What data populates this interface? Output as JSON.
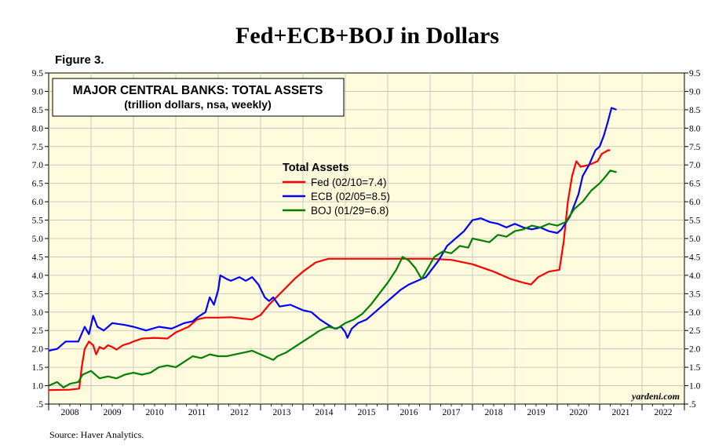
{
  "chart_data": {
    "type": "line",
    "title": "Fed+ECB+BOJ in Dollars",
    "figure_label": "Figure 3.",
    "box_title": "MAJOR CENTRAL BANKS: TOTAL ASSETS",
    "box_subtitle": "(trillion dollars, nsa, weekly)",
    "legend_title": "Total Assets",
    "legend_placement": "upper-center",
    "watermark": "yardeni.com",
    "source": "Source: Haver Analytics.",
    "ylim": [
      0.5,
      9.5
    ],
    "xlim": [
      2008,
      2023
    ],
    "y_ticks": [
      ".5",
      "1.0",
      "1.5",
      "2.0",
      "2.5",
      "3.0",
      "3.5",
      "4.0",
      "4.5",
      "5.0",
      "5.5",
      "6.0",
      "6.5",
      "7.0",
      "7.5",
      "8.0",
      "8.5",
      "9.0",
      "9.5"
    ],
    "x_tick_labels": [
      "2008",
      "2009",
      "2010",
      "2011",
      "2012",
      "2013",
      "2014",
      "2015",
      "2016",
      "2017",
      "2018",
      "2019",
      "2020",
      "2021",
      "2022"
    ],
    "plot_background": "#fffbdc",
    "series": [
      {
        "name": "Fed",
        "label": "Fed (02/10=7.4)",
        "color": "#ff0000",
        "points": [
          [
            2008.0,
            0.88
          ],
          [
            2008.5,
            0.89
          ],
          [
            2008.72,
            0.92
          ],
          [
            2008.78,
            1.5
          ],
          [
            2008.85,
            2.0
          ],
          [
            2008.95,
            2.2
          ],
          [
            2009.05,
            2.1
          ],
          [
            2009.12,
            1.85
          ],
          [
            2009.2,
            2.05
          ],
          [
            2009.3,
            2.0
          ],
          [
            2009.4,
            2.1
          ],
          [
            2009.5,
            2.05
          ],
          [
            2009.6,
            1.98
          ],
          [
            2009.75,
            2.1
          ],
          [
            2009.9,
            2.15
          ],
          [
            2010.0,
            2.2
          ],
          [
            2010.2,
            2.28
          ],
          [
            2010.5,
            2.3
          ],
          [
            2010.8,
            2.28
          ],
          [
            2011.0,
            2.45
          ],
          [
            2011.3,
            2.6
          ],
          [
            2011.5,
            2.8
          ],
          [
            2011.7,
            2.85
          ],
          [
            2012.0,
            2.85
          ],
          [
            2012.3,
            2.86
          ],
          [
            2012.6,
            2.82
          ],
          [
            2012.8,
            2.8
          ],
          [
            2013.0,
            2.92
          ],
          [
            2013.2,
            3.2
          ],
          [
            2013.5,
            3.55
          ],
          [
            2013.8,
            3.9
          ],
          [
            2014.0,
            4.1
          ],
          [
            2014.3,
            4.35
          ],
          [
            2014.6,
            4.45
          ],
          [
            2015.0,
            4.45
          ],
          [
            2015.5,
            4.45
          ],
          [
            2016.0,
            4.45
          ],
          [
            2016.5,
            4.45
          ],
          [
            2017.0,
            4.45
          ],
          [
            2017.5,
            4.42
          ],
          [
            2018.0,
            4.3
          ],
          [
            2018.5,
            4.1
          ],
          [
            2018.9,
            3.9
          ],
          [
            2019.2,
            3.8
          ],
          [
            2019.38,
            3.75
          ],
          [
            2019.55,
            3.95
          ],
          [
            2019.8,
            4.1
          ],
          [
            2020.05,
            4.15
          ],
          [
            2020.15,
            4.9
          ],
          [
            2020.25,
            6.0
          ],
          [
            2020.35,
            6.7
          ],
          [
            2020.45,
            7.1
          ],
          [
            2020.55,
            6.95
          ],
          [
            2020.75,
            7.0
          ],
          [
            2020.95,
            7.1
          ],
          [
            2021.05,
            7.3
          ],
          [
            2021.2,
            7.4
          ],
          [
            2021.25,
            7.4
          ]
        ]
      },
      {
        "name": "ECB",
        "label": "ECB (02/05=8.5)",
        "color": "#0000ff",
        "points": [
          [
            2008.0,
            1.95
          ],
          [
            2008.2,
            2.0
          ],
          [
            2008.4,
            2.2
          ],
          [
            2008.7,
            2.2
          ],
          [
            2008.85,
            2.6
          ],
          [
            2008.95,
            2.4
          ],
          [
            2009.05,
            2.9
          ],
          [
            2009.15,
            2.6
          ],
          [
            2009.3,
            2.5
          ],
          [
            2009.5,
            2.7
          ],
          [
            2009.8,
            2.65
          ],
          [
            2010.0,
            2.6
          ],
          [
            2010.3,
            2.5
          ],
          [
            2010.6,
            2.6
          ],
          [
            2010.9,
            2.55
          ],
          [
            2011.2,
            2.7
          ],
          [
            2011.4,
            2.75
          ],
          [
            2011.5,
            2.85
          ],
          [
            2011.7,
            3.0
          ],
          [
            2011.8,
            3.4
          ],
          [
            2011.9,
            3.2
          ],
          [
            2012.0,
            3.6
          ],
          [
            2012.05,
            4.0
          ],
          [
            2012.2,
            3.9
          ],
          [
            2012.3,
            3.85
          ],
          [
            2012.5,
            3.95
          ],
          [
            2012.65,
            3.85
          ],
          [
            2012.8,
            3.95
          ],
          [
            2012.95,
            3.75
          ],
          [
            2013.1,
            3.4
          ],
          [
            2013.2,
            3.3
          ],
          [
            2013.3,
            3.4
          ],
          [
            2013.45,
            3.15
          ],
          [
            2013.7,
            3.2
          ],
          [
            2014.0,
            3.05
          ],
          [
            2014.2,
            3.0
          ],
          [
            2014.3,
            2.9
          ],
          [
            2014.4,
            2.8
          ],
          [
            2014.6,
            2.65
          ],
          [
            2014.75,
            2.55
          ],
          [
            2014.9,
            2.6
          ],
          [
            2015.0,
            2.45
          ],
          [
            2015.05,
            2.3
          ],
          [
            2015.15,
            2.55
          ],
          [
            2015.3,
            2.7
          ],
          [
            2015.5,
            2.8
          ],
          [
            2015.7,
            3.0
          ],
          [
            2015.9,
            3.2
          ],
          [
            2016.1,
            3.4
          ],
          [
            2016.3,
            3.6
          ],
          [
            2016.5,
            3.75
          ],
          [
            2016.7,
            3.85
          ],
          [
            2016.9,
            3.95
          ],
          [
            2017.0,
            4.1
          ],
          [
            2017.2,
            4.4
          ],
          [
            2017.4,
            4.8
          ],
          [
            2017.6,
            5.0
          ],
          [
            2017.8,
            5.2
          ],
          [
            2018.0,
            5.5
          ],
          [
            2018.2,
            5.55
          ],
          [
            2018.4,
            5.45
          ],
          [
            2018.6,
            5.4
          ],
          [
            2018.8,
            5.3
          ],
          [
            2019.0,
            5.4
          ],
          [
            2019.2,
            5.3
          ],
          [
            2019.4,
            5.25
          ],
          [
            2019.6,
            5.3
          ],
          [
            2019.8,
            5.2
          ],
          [
            2020.0,
            5.15
          ],
          [
            2020.1,
            5.25
          ],
          [
            2020.3,
            5.6
          ],
          [
            2020.5,
            6.2
          ],
          [
            2020.6,
            6.7
          ],
          [
            2020.75,
            7.0
          ],
          [
            2020.9,
            7.4
          ],
          [
            2021.0,
            7.5
          ],
          [
            2021.1,
            7.8
          ],
          [
            2021.2,
            8.2
          ],
          [
            2021.28,
            8.55
          ],
          [
            2021.4,
            8.5
          ]
        ]
      },
      {
        "name": "BOJ",
        "label": "BOJ (01/29=6.8)",
        "color": "#008000",
        "points": [
          [
            2008.0,
            1.0
          ],
          [
            2008.2,
            1.1
          ],
          [
            2008.35,
            0.95
          ],
          [
            2008.5,
            1.05
          ],
          [
            2008.7,
            1.1
          ],
          [
            2008.8,
            1.3
          ],
          [
            2009.0,
            1.4
          ],
          [
            2009.2,
            1.2
          ],
          [
            2009.4,
            1.25
          ],
          [
            2009.6,
            1.2
          ],
          [
            2009.8,
            1.3
          ],
          [
            2010.0,
            1.35
          ],
          [
            2010.2,
            1.3
          ],
          [
            2010.4,
            1.35
          ],
          [
            2010.6,
            1.5
          ],
          [
            2010.8,
            1.55
          ],
          [
            2011.0,
            1.5
          ],
          [
            2011.2,
            1.65
          ],
          [
            2011.4,
            1.8
          ],
          [
            2011.6,
            1.75
          ],
          [
            2011.8,
            1.85
          ],
          [
            2012.0,
            1.8
          ],
          [
            2012.2,
            1.8
          ],
          [
            2012.4,
            1.85
          ],
          [
            2012.6,
            1.9
          ],
          [
            2012.8,
            1.95
          ],
          [
            2013.0,
            1.85
          ],
          [
            2013.2,
            1.75
          ],
          [
            2013.3,
            1.7
          ],
          [
            2013.4,
            1.8
          ],
          [
            2013.6,
            1.9
          ],
          [
            2013.8,
            2.05
          ],
          [
            2014.0,
            2.2
          ],
          [
            2014.2,
            2.35
          ],
          [
            2014.4,
            2.5
          ],
          [
            2014.6,
            2.6
          ],
          [
            2014.8,
            2.55
          ],
          [
            2015.0,
            2.7
          ],
          [
            2015.2,
            2.8
          ],
          [
            2015.4,
            2.95
          ],
          [
            2015.6,
            3.2
          ],
          [
            2015.8,
            3.5
          ],
          [
            2016.0,
            3.8
          ],
          [
            2016.2,
            4.15
          ],
          [
            2016.35,
            4.5
          ],
          [
            2016.5,
            4.4
          ],
          [
            2016.65,
            4.2
          ],
          [
            2016.8,
            3.9
          ],
          [
            2016.95,
            4.2
          ],
          [
            2017.1,
            4.5
          ],
          [
            2017.3,
            4.65
          ],
          [
            2017.5,
            4.6
          ],
          [
            2017.7,
            4.8
          ],
          [
            2017.9,
            4.75
          ],
          [
            2018.0,
            5.0
          ],
          [
            2018.2,
            4.95
          ],
          [
            2018.4,
            4.9
          ],
          [
            2018.6,
            5.1
          ],
          [
            2018.8,
            5.05
          ],
          [
            2019.0,
            5.2
          ],
          [
            2019.2,
            5.25
          ],
          [
            2019.4,
            5.35
          ],
          [
            2019.6,
            5.3
          ],
          [
            2019.8,
            5.4
          ],
          [
            2020.0,
            5.35
          ],
          [
            2020.2,
            5.45
          ],
          [
            2020.4,
            5.8
          ],
          [
            2020.6,
            6.0
          ],
          [
            2020.8,
            6.3
          ],
          [
            2021.0,
            6.5
          ],
          [
            2021.15,
            6.7
          ],
          [
            2021.25,
            6.85
          ],
          [
            2021.4,
            6.8
          ]
        ]
      }
    ]
  }
}
